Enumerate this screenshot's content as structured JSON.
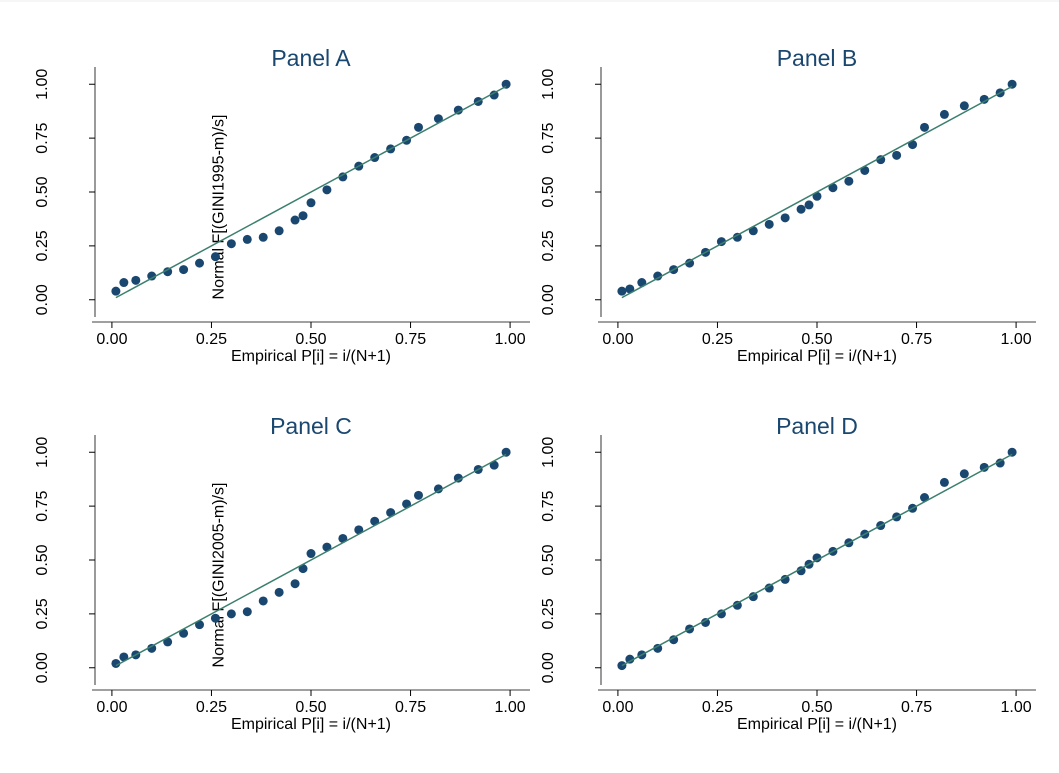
{
  "chart_data": [
    {
      "type": "scatter",
      "title": "Panel A",
      "xlabel": "Empirical P[i] = i/(N+1)",
      "ylabel": "Normal F[(GINI1995-m)/s]",
      "x": [
        0.01,
        0.03,
        0.06,
        0.1,
        0.14,
        0.18,
        0.22,
        0.26,
        0.3,
        0.34,
        0.38,
        0.42,
        0.46,
        0.48,
        0.5,
        0.54,
        0.58,
        0.62,
        0.66,
        0.7,
        0.74,
        0.77,
        0.82,
        0.87,
        0.92,
        0.96,
        0.99
      ],
      "values": [
        0.04,
        0.08,
        0.09,
        0.11,
        0.13,
        0.14,
        0.17,
        0.2,
        0.26,
        0.28,
        0.29,
        0.32,
        0.37,
        0.39,
        0.45,
        0.51,
        0.57,
        0.62,
        0.66,
        0.7,
        0.74,
        0.8,
        0.84,
        0.88,
        0.92,
        0.95,
        1.0
      ],
      "color": "#1a476f",
      "reference": {
        "x": [
          0.01,
          0.99
        ],
        "values": [
          0.01,
          0.99
        ],
        "color": "#3b7f6e"
      },
      "xlim": [
        -0.05,
        1.05
      ],
      "ylim": [
        -0.08,
        1.08
      ],
      "xticks": [
        {
          "value": 0,
          "label": "0.00"
        },
        {
          "value": 0.25,
          "label": "0.25"
        },
        {
          "value": 0.5,
          "label": "0.50"
        },
        {
          "value": 0.75,
          "label": "0.75"
        },
        {
          "value": 1,
          "label": "1.00"
        }
      ],
      "yticks": [
        {
          "value": 0,
          "label": "0.00"
        },
        {
          "value": 0.25,
          "label": "0.25"
        },
        {
          "value": 0.5,
          "label": "0.50"
        },
        {
          "value": 0.75,
          "label": "0.75"
        },
        {
          "value": 1,
          "label": "1.00"
        }
      ]
    },
    {
      "type": "scatter",
      "title": "Panel B",
      "xlabel": "Empirical P[i] = i/(N+1)",
      "x": [
        0.01,
        0.03,
        0.06,
        0.1,
        0.14,
        0.18,
        0.22,
        0.26,
        0.3,
        0.34,
        0.38,
        0.42,
        0.46,
        0.48,
        0.5,
        0.54,
        0.58,
        0.62,
        0.66,
        0.7,
        0.74,
        0.77,
        0.82,
        0.87,
        0.92,
        0.96,
        0.99
      ],
      "values": [
        0.04,
        0.05,
        0.08,
        0.11,
        0.14,
        0.17,
        0.22,
        0.27,
        0.29,
        0.32,
        0.35,
        0.38,
        0.42,
        0.44,
        0.48,
        0.52,
        0.55,
        0.6,
        0.65,
        0.67,
        0.72,
        0.8,
        0.86,
        0.9,
        0.93,
        0.96,
        1.0
      ],
      "color": "#1a476f",
      "reference": {
        "x": [
          0.01,
          0.99
        ],
        "values": [
          0.01,
          0.99
        ],
        "color": "#3b7f6e"
      },
      "xlim": [
        -0.05,
        1.05
      ],
      "ylim": [
        -0.08,
        1.08
      ],
      "xticks": [
        {
          "value": 0,
          "label": "0.00"
        },
        {
          "value": 0.25,
          "label": "0.25"
        },
        {
          "value": 0.5,
          "label": "0.50"
        },
        {
          "value": 0.75,
          "label": "0.75"
        },
        {
          "value": 1,
          "label": "1.00"
        }
      ],
      "yticks": [
        {
          "value": 0,
          "label": "0.00"
        },
        {
          "value": 0.25,
          "label": "0.25"
        },
        {
          "value": 0.5,
          "label": "0.50"
        },
        {
          "value": 0.75,
          "label": "0.75"
        },
        {
          "value": 1,
          "label": "1.00"
        }
      ]
    },
    {
      "type": "scatter",
      "title": "Panel C",
      "xlabel": "Empirical P[i] = i/(N+1)",
      "ylabel": "Normal F[(GINI2005-m)/s]",
      "x": [
        0.01,
        0.03,
        0.06,
        0.1,
        0.14,
        0.18,
        0.22,
        0.26,
        0.3,
        0.34,
        0.38,
        0.42,
        0.46,
        0.48,
        0.5,
        0.54,
        0.58,
        0.62,
        0.66,
        0.7,
        0.74,
        0.77,
        0.82,
        0.87,
        0.92,
        0.96,
        0.99
      ],
      "values": [
        0.02,
        0.05,
        0.06,
        0.09,
        0.12,
        0.16,
        0.2,
        0.23,
        0.25,
        0.26,
        0.31,
        0.35,
        0.39,
        0.46,
        0.53,
        0.56,
        0.6,
        0.64,
        0.68,
        0.72,
        0.76,
        0.8,
        0.83,
        0.88,
        0.92,
        0.94,
        1.0
      ],
      "color": "#1a476f",
      "reference": {
        "x": [
          0.01,
          0.99
        ],
        "values": [
          0.01,
          0.99
        ],
        "color": "#3b7f6e"
      },
      "xlim": [
        -0.05,
        1.05
      ],
      "ylim": [
        -0.08,
        1.08
      ],
      "xticks": [
        {
          "value": 0,
          "label": "0.00"
        },
        {
          "value": 0.25,
          "label": "0.25"
        },
        {
          "value": 0.5,
          "label": "0.50"
        },
        {
          "value": 0.75,
          "label": "0.75"
        },
        {
          "value": 1,
          "label": "1.00"
        }
      ],
      "yticks": [
        {
          "value": 0,
          "label": "0.00"
        },
        {
          "value": 0.25,
          "label": "0.25"
        },
        {
          "value": 0.5,
          "label": "0.50"
        },
        {
          "value": 0.75,
          "label": "0.75"
        },
        {
          "value": 1,
          "label": "1.00"
        }
      ]
    },
    {
      "type": "scatter",
      "title": "Panel D",
      "xlabel": "Empirical P[i] = i/(N+1)",
      "x": [
        0.01,
        0.03,
        0.06,
        0.1,
        0.14,
        0.18,
        0.22,
        0.26,
        0.3,
        0.34,
        0.38,
        0.42,
        0.46,
        0.48,
        0.5,
        0.54,
        0.58,
        0.62,
        0.66,
        0.7,
        0.74,
        0.77,
        0.82,
        0.87,
        0.92,
        0.96,
        0.99
      ],
      "values": [
        0.01,
        0.04,
        0.06,
        0.09,
        0.13,
        0.18,
        0.21,
        0.25,
        0.29,
        0.33,
        0.37,
        0.41,
        0.45,
        0.48,
        0.51,
        0.54,
        0.58,
        0.62,
        0.66,
        0.7,
        0.74,
        0.79,
        0.86,
        0.9,
        0.93,
        0.95,
        1.0
      ],
      "color": "#1a476f",
      "reference": {
        "x": [
          0.01,
          0.99
        ],
        "values": [
          0.01,
          0.99
        ],
        "color": "#3b7f6e"
      },
      "xlim": [
        -0.05,
        1.05
      ],
      "ylim": [
        -0.08,
        1.08
      ],
      "xticks": [
        {
          "value": 0,
          "label": "0.00"
        },
        {
          "value": 0.25,
          "label": "0.25"
        },
        {
          "value": 0.5,
          "label": "0.50"
        },
        {
          "value": 0.75,
          "label": "0.75"
        },
        {
          "value": 1,
          "label": "1.00"
        }
      ],
      "yticks": [
        {
          "value": 0,
          "label": "0.00"
        },
        {
          "value": 0.25,
          "label": "0.25"
        },
        {
          "value": 0.5,
          "label": "0.50"
        },
        {
          "value": 0.75,
          "label": "0.75"
        },
        {
          "value": 1,
          "label": "1.00"
        }
      ]
    }
  ]
}
